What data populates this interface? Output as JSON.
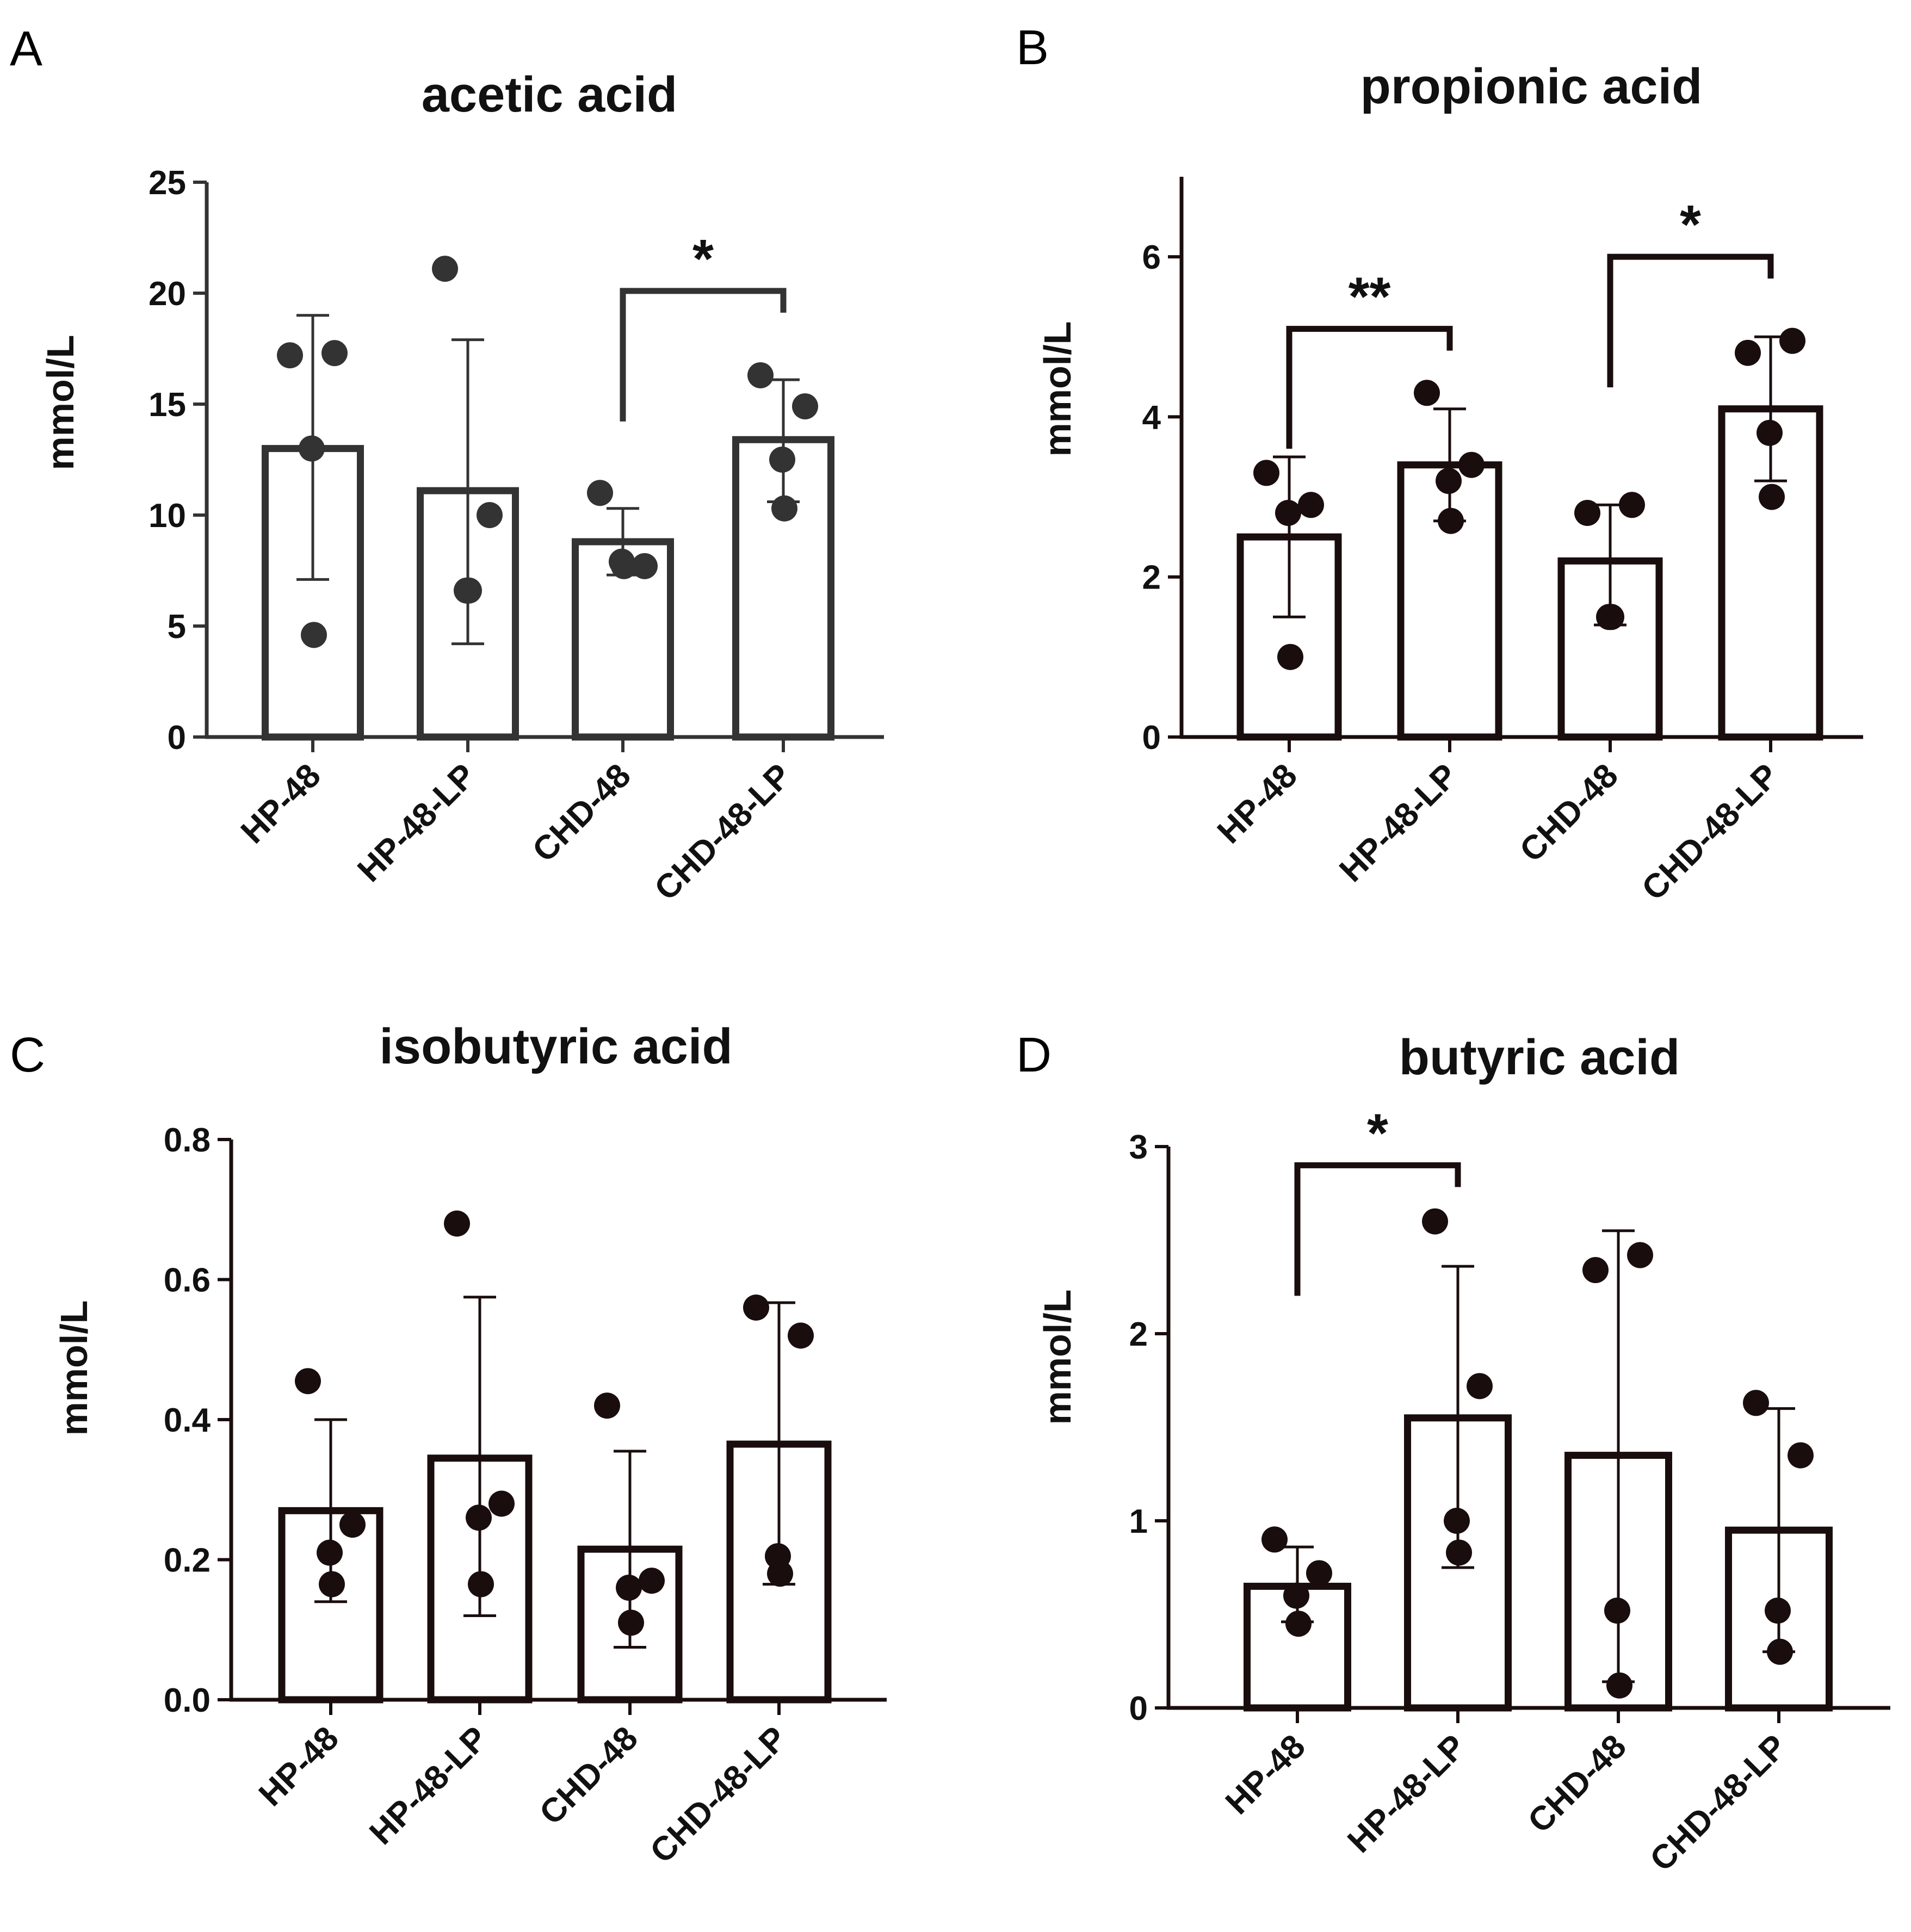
{
  "colors": {
    "panel_a_ink": "#333333",
    "ink": "#1a0d0d",
    "background": "#ffffff"
  },
  "chart_data": [
    {
      "panel": "A",
      "type": "bar",
      "title": "acetic acid",
      "xlabel": "",
      "ylabel": "mmol/L",
      "ylim": [
        0,
        25
      ],
      "yticks": [
        0,
        5,
        10,
        15,
        20,
        25
      ],
      "ytick_labels": [
        "0",
        "5",
        "10",
        "15",
        "20",
        "25"
      ],
      "categories": [
        "HP-48",
        "HP-48-LP",
        "CHD-48",
        "CHD-48-LP"
      ],
      "values": [
        13.0,
        11.1,
        8.8,
        13.4
      ],
      "error": [
        [
          7.1,
          19.0
        ],
        [
          4.2,
          17.9
        ],
        [
          7.3,
          10.3
        ],
        [
          10.6,
          16.1
        ]
      ],
      "points": [
        [
          17.2,
          17.3,
          13.0,
          4.6
        ],
        [
          21.1,
          10.0,
          6.6,
          6.6
        ],
        [
          11.0,
          7.7,
          7.9,
          7.7
        ],
        [
          16.3,
          14.9,
          12.5,
          10.3
        ]
      ],
      "significance": [
        {
          "from": 2,
          "to": 3,
          "label": "*",
          "y": 20.1
        }
      ]
    },
    {
      "panel": "B",
      "type": "bar",
      "title": "propionic acid",
      "xlabel": "",
      "ylabel": "mmol/L",
      "ylim": [
        0,
        7
      ],
      "yticks": [
        0,
        2,
        4,
        6
      ],
      "ytick_labels": [
        "0",
        "2",
        "4",
        "6"
      ],
      "categories": [
        "HP-48",
        "HP-48-LP",
        "CHD-48",
        "CHD-48-LP"
      ],
      "values": [
        2.5,
        3.4,
        2.2,
        4.1
      ],
      "error": [
        [
          1.5,
          3.5
        ],
        [
          2.7,
          4.1
        ],
        [
          1.4,
          2.9
        ],
        [
          3.2,
          5.0
        ]
      ],
      "points": [
        [
          3.3,
          2.9,
          2.8,
          1.0
        ],
        [
          4.3,
          3.4,
          3.2,
          2.7
        ],
        [
          2.8,
          2.9,
          1.5,
          1.5
        ],
        [
          4.8,
          4.95,
          3.8,
          3.0
        ]
      ],
      "significance": [
        {
          "from": 0,
          "to": 1,
          "label": "**",
          "y": 5.1
        },
        {
          "from": 2,
          "to": 3,
          "label": "*",
          "y": 6.0
        }
      ]
    },
    {
      "panel": "C",
      "type": "bar",
      "title": "isobutyric acid",
      "xlabel": "",
      "ylabel": "mmol/L",
      "ylim": [
        0,
        0.8
      ],
      "yticks": [
        0,
        0.2,
        0.4,
        0.6,
        0.8
      ],
      "ytick_labels": [
        "0.0",
        "0.2",
        "0.4",
        "0.6",
        "0.8"
      ],
      "categories": [
        "HP-48",
        "HP-48-LP",
        "CHD-48",
        "CHD-48-LP"
      ],
      "values": [
        0.27,
        0.345,
        0.215,
        0.365
      ],
      "error": [
        [
          0.14,
          0.4
        ],
        [
          0.12,
          0.575
        ],
        [
          0.075,
          0.355
        ],
        [
          0.165,
          0.567
        ]
      ],
      "points": [
        [
          0.455,
          0.25,
          0.21,
          0.165
        ],
        [
          0.68,
          0.28,
          0.26,
          0.165
        ],
        [
          0.42,
          0.17,
          0.16,
          0.11
        ],
        [
          0.56,
          0.52,
          0.205,
          0.18
        ]
      ],
      "significance": []
    },
    {
      "panel": "D",
      "type": "bar",
      "title": "butyric acid",
      "xlabel": "",
      "ylabel": "mmol/L",
      "ylim": [
        0,
        3
      ],
      "yticks": [
        0,
        1,
        2,
        3
      ],
      "ytick_labels": [
        "0",
        "1",
        "2",
        "3"
      ],
      "categories": [
        "HP-48",
        "HP-48-LP",
        "CHD-48",
        "CHD-48-LP"
      ],
      "values": [
        0.65,
        1.55,
        1.35,
        0.95
      ],
      "error": [
        [
          0.46,
          0.86
        ],
        [
          0.75,
          2.36
        ],
        [
          0.14,
          2.55
        ],
        [
          0.3,
          1.6
        ]
      ],
      "points": [
        [
          0.9,
          0.72,
          0.6,
          0.45
        ],
        [
          2.6,
          1.72,
          1.0,
          0.83
        ],
        [
          2.34,
          2.42,
          0.52,
          0.12
        ],
        [
          1.63,
          1.35,
          0.52,
          0.3
        ]
      ],
      "significance": [
        {
          "from": 0,
          "to": 1,
          "label": "*",
          "y": 2.9
        }
      ]
    }
  ]
}
